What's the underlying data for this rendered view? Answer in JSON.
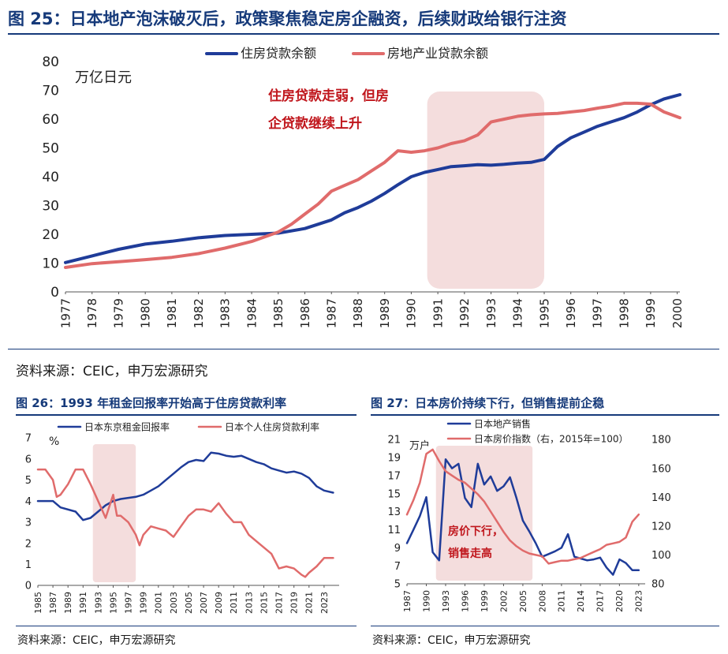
{
  "fig25": {
    "title": "图 25：日本地产泡沫破灭后，政策聚焦稳定房企融资，后续财政给银行注资",
    "source": "资料来源：CEIC，申万宏源研究"
  },
  "fig26": {
    "title": "图 26：1993 年租金回报率开始高于住房贷款利率",
    "source": "资料来源：CEIC，申万宏源研究"
  },
  "fig27": {
    "title": "图 27：日本房价持续下行，但销售提前企稳",
    "source": "资料来源：CEIC，申万宏源研究"
  },
  "chart_data": [
    {
      "id": "c25",
      "type": "line",
      "ylabel": "万亿日元",
      "ylim": [
        0,
        80
      ],
      "yticks": [
        0,
        10,
        20,
        30,
        40,
        50,
        60,
        70,
        80
      ],
      "xlim": [
        1977,
        2000.1
      ],
      "xticks": [
        "1977",
        "1978",
        "1979",
        "1980",
        "1981",
        "1982",
        "1983",
        "1984",
        "1985",
        "1986",
        "1987",
        "1988",
        "1989",
        "1990",
        "1991",
        "1992",
        "1993",
        "1994",
        "1995",
        "1996",
        "1997",
        "1998",
        "1999",
        "2000"
      ],
      "legend_position": "top-center",
      "annotation": [
        "住房贷款走弱，但房",
        "企贷款继续上升"
      ],
      "shaded_x": [
        1990.6,
        1995.0
      ],
      "series": [
        {
          "name": "住房贷款余额",
          "color": "#1f3c99",
          "x": [
            1977,
            1978,
            1979,
            1980,
            1981,
            1982,
            1983,
            1984,
            1985,
            1986,
            1987,
            1987.5,
            1988,
            1988.5,
            1989,
            1989.5,
            1990,
            1990.5,
            1991,
            1991.5,
            1992,
            1992.5,
            1993,
            1993.5,
            1994,
            1994.5,
            1995,
            1995.5,
            1996,
            1996.5,
            1997,
            1997.5,
            1998,
            1998.5,
            1999,
            1999.5,
            1999.9,
            2000.1
          ],
          "y": [
            10.2,
            12.5,
            14.8,
            16.6,
            17.6,
            18.8,
            19.6,
            20.0,
            20.4,
            22.0,
            25.0,
            27.5,
            29.3,
            31.5,
            34.2,
            37.2,
            40.0,
            41.5,
            42.5,
            43.5,
            43.8,
            44.2,
            44.0,
            44.3,
            44.7,
            45.0,
            46.0,
            50.5,
            53.5,
            55.5,
            57.5,
            59.0,
            60.5,
            62.5,
            65.0,
            67.0,
            68.0,
            68.5
          ]
        },
        {
          "name": "房地产业贷款余额",
          "color": "#e06b6b",
          "x": [
            1977,
            1978,
            1979,
            1980,
            1981,
            1982,
            1983,
            1984,
            1985,
            1985.5,
            1986,
            1986.5,
            1987,
            1987.5,
            1988,
            1988.5,
            1989,
            1989.5,
            1990,
            1990.5,
            1991,
            1991.5,
            1992,
            1992.5,
            1993,
            1993.5,
            1994,
            1994.5,
            1995,
            1995.5,
            1996,
            1996.5,
            1997,
            1997.5,
            1998,
            1998.5,
            1999,
            1999.5,
            2000.1
          ],
          "y": [
            8.5,
            9.8,
            10.5,
            11.2,
            12.0,
            13.3,
            15.2,
            17.5,
            20.8,
            23.5,
            27.0,
            30.5,
            35.0,
            37.0,
            39.0,
            42.0,
            45.0,
            49.0,
            48.5,
            49.0,
            50.0,
            51.5,
            52.5,
            54.5,
            59.0,
            60.0,
            61.0,
            61.5,
            61.8,
            62.0,
            62.5,
            63.0,
            63.8,
            64.5,
            65.5,
            65.5,
            65.2,
            62.5,
            60.5
          ]
        }
      ]
    },
    {
      "id": "c26",
      "type": "line",
      "ylabel": "%",
      "ylim": [
        0,
        7
      ],
      "yticks": [
        0,
        1,
        2,
        3,
        4,
        5,
        6,
        7
      ],
      "xlim": [
        1985,
        2025
      ],
      "xticks": [
        "1985",
        "1987",
        "1989",
        "1991",
        "1993",
        "1995",
        "1997",
        "1999",
        "2001",
        "2003",
        "2005",
        "2007",
        "2009",
        "2011",
        "2013",
        "2015",
        "2017",
        "2019",
        "2021",
        "2023"
      ],
      "legend_position": "top",
      "shaded_x": [
        1992.3,
        1998.0
      ],
      "series": [
        {
          "name": "日本东京租金回报率",
          "color": "#1f3c99",
          "x": [
            1985,
            1987,
            1988,
            1990,
            1991,
            1992,
            1993,
            1994,
            1995,
            1996,
            1997,
            1998,
            1999,
            2000,
            2001,
            2002,
            2003,
            2004,
            2005,
            2006,
            2007,
            2008,
            2009,
            2010,
            2011,
            2012,
            2013,
            2014,
            2015,
            2016,
            2017,
            2018,
            2019,
            2020,
            2021,
            2022,
            2023,
            2024.2
          ],
          "y": [
            4.0,
            4.0,
            3.7,
            3.5,
            3.1,
            3.2,
            3.5,
            3.8,
            4.0,
            4.1,
            4.15,
            4.2,
            4.3,
            4.5,
            4.7,
            5.0,
            5.3,
            5.6,
            5.85,
            5.95,
            5.9,
            6.3,
            6.25,
            6.15,
            6.1,
            6.15,
            6.0,
            5.85,
            5.75,
            5.55,
            5.45,
            5.35,
            5.4,
            5.3,
            5.1,
            4.7,
            4.5,
            4.4
          ]
        },
        {
          "name": "日本个人住房贷款利率",
          "color": "#e06b6b",
          "x": [
            1985,
            1986,
            1987,
            1987.5,
            1988,
            1989,
            1990,
            1991,
            1992,
            1993,
            1994,
            1995,
            1995.5,
            1996,
            1997,
            1998,
            1998.5,
            1999,
            2000,
            2001,
            2002,
            2003,
            2004,
            2005,
            2006,
            2007,
            2008,
            2009,
            2010,
            2011,
            2012,
            2013,
            2014,
            2015,
            2016,
            2017,
            2018,
            2019,
            2020,
            2020.5,
            2021,
            2022,
            2023,
            2024.2
          ],
          "y": [
            5.5,
            5.5,
            5.0,
            4.2,
            4.3,
            4.8,
            5.5,
            5.5,
            4.8,
            4.0,
            3.2,
            4.3,
            3.3,
            3.3,
            3.0,
            2.4,
            1.9,
            2.4,
            2.8,
            2.7,
            2.6,
            2.3,
            2.8,
            3.3,
            3.6,
            3.6,
            3.5,
            3.9,
            3.4,
            3.0,
            3.0,
            2.4,
            2.1,
            1.8,
            1.5,
            0.8,
            0.9,
            0.8,
            0.5,
            0.4,
            0.6,
            0.9,
            1.3,
            1.3
          ]
        }
      ]
    },
    {
      "id": "c27",
      "type": "line",
      "ylabel": "万户",
      "ylim": [
        5,
        21
      ],
      "yticks": [
        5,
        7,
        9,
        11,
        13,
        15,
        17,
        19,
        21
      ],
      "y2lim": [
        80,
        180
      ],
      "y2ticks": [
        80,
        100,
        120,
        140,
        160,
        180
      ],
      "xlim": [
        1987,
        2024
      ],
      "xticks": [
        "1987",
        "1990",
        "1993",
        "1996",
        "1999",
        "2002",
        "2005",
        "2008",
        "2011",
        "2014",
        "2017",
        "2020",
        "2023"
      ],
      "legend_position": "top",
      "annotation": [
        "房价下行，",
        "销售走高"
      ],
      "shaded_x": [
        1991.5,
        2006.5
      ],
      "series": [
        {
          "name": "日本地产销售",
          "color": "#1f3c99",
          "axis": "left",
          "x": [
            1987,
            1988,
            1989,
            1990,
            1991,
            1992,
            1993,
            1994,
            1995,
            1996,
            1997,
            1998,
            1999,
            2000,
            2001,
            2002,
            2003,
            2004,
            2005,
            2006,
            2007,
            2008,
            2009,
            2010,
            2011,
            2012,
            2013,
            2014,
            2015,
            2016,
            2017,
            2018,
            2019,
            2020,
            2021,
            2022,
            2023
          ],
          "y": [
            9.5,
            11.0,
            12.5,
            14.6,
            8.5,
            7.6,
            18.8,
            17.8,
            18.3,
            14.5,
            13.5,
            18.3,
            16.0,
            16.9,
            15.3,
            15.8,
            16.8,
            14.5,
            12.0,
            10.8,
            9.5,
            8.0,
            8.3,
            8.6,
            9.0,
            10.5,
            8.0,
            7.8,
            7.6,
            7.7,
            7.9,
            6.8,
            6.0,
            7.7,
            7.3,
            6.5,
            6.5
          ]
        },
        {
          "name": "日本房价指数（右，2015年=100）",
          "color": "#e06b6b",
          "axis": "right",
          "x": [
            1987,
            1988,
            1989,
            1990,
            1991,
            1992,
            1993,
            1994,
            1995,
            1996,
            1997,
            1998,
            1999,
            2000,
            2001,
            2002,
            2003,
            2004,
            2005,
            2006,
            2007,
            2008,
            2009,
            2010,
            2011,
            2012,
            2013,
            2014,
            2015,
            2016,
            2017,
            2018,
            2019,
            2020,
            2021,
            2022,
            2023
          ],
          "y": [
            128,
            138,
            150,
            170,
            173,
            165,
            158,
            155,
            152,
            150,
            146,
            142,
            137,
            130,
            123,
            116,
            110,
            106,
            103,
            101,
            100,
            99,
            94,
            95,
            96,
            96,
            97,
            98,
            100,
            102,
            104,
            107,
            108,
            109,
            112,
            123,
            128
          ]
        }
      ]
    }
  ]
}
